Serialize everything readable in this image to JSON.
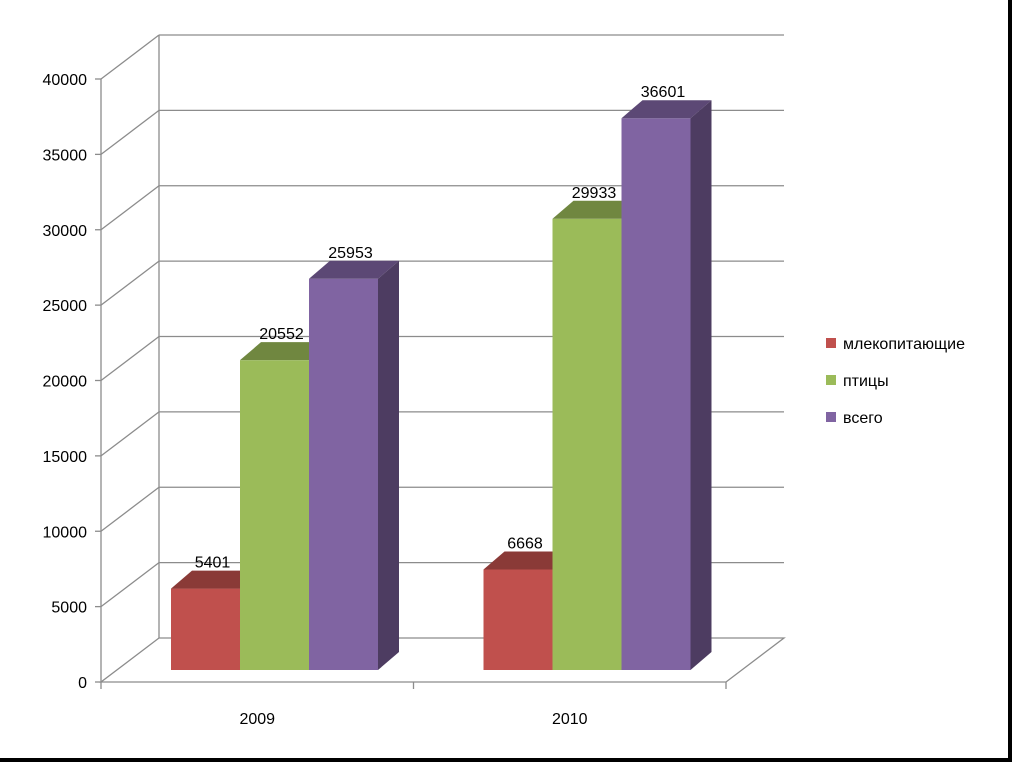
{
  "chart_data": {
    "type": "bar",
    "style": "3d-clustered-column",
    "categories": [
      "2009",
      "2010"
    ],
    "series": [
      {
        "name": "млекопитающие",
        "values": [
          5401,
          6668
        ],
        "color": "#C0504D"
      },
      {
        "name": "птицы",
        "values": [
          20552,
          29933
        ],
        "color": "#9BBB59"
      },
      {
        "name": "всего",
        "values": [
          25953,
          36601
        ],
        "color": "#8064A2"
      }
    ],
    "yticks": [
      0,
      5000,
      10000,
      15000,
      20000,
      25000,
      30000,
      35000,
      40000
    ],
    "ylim": [
      0,
      40000
    ],
    "grid": true,
    "legend_position": "right",
    "data_labels": true
  }
}
